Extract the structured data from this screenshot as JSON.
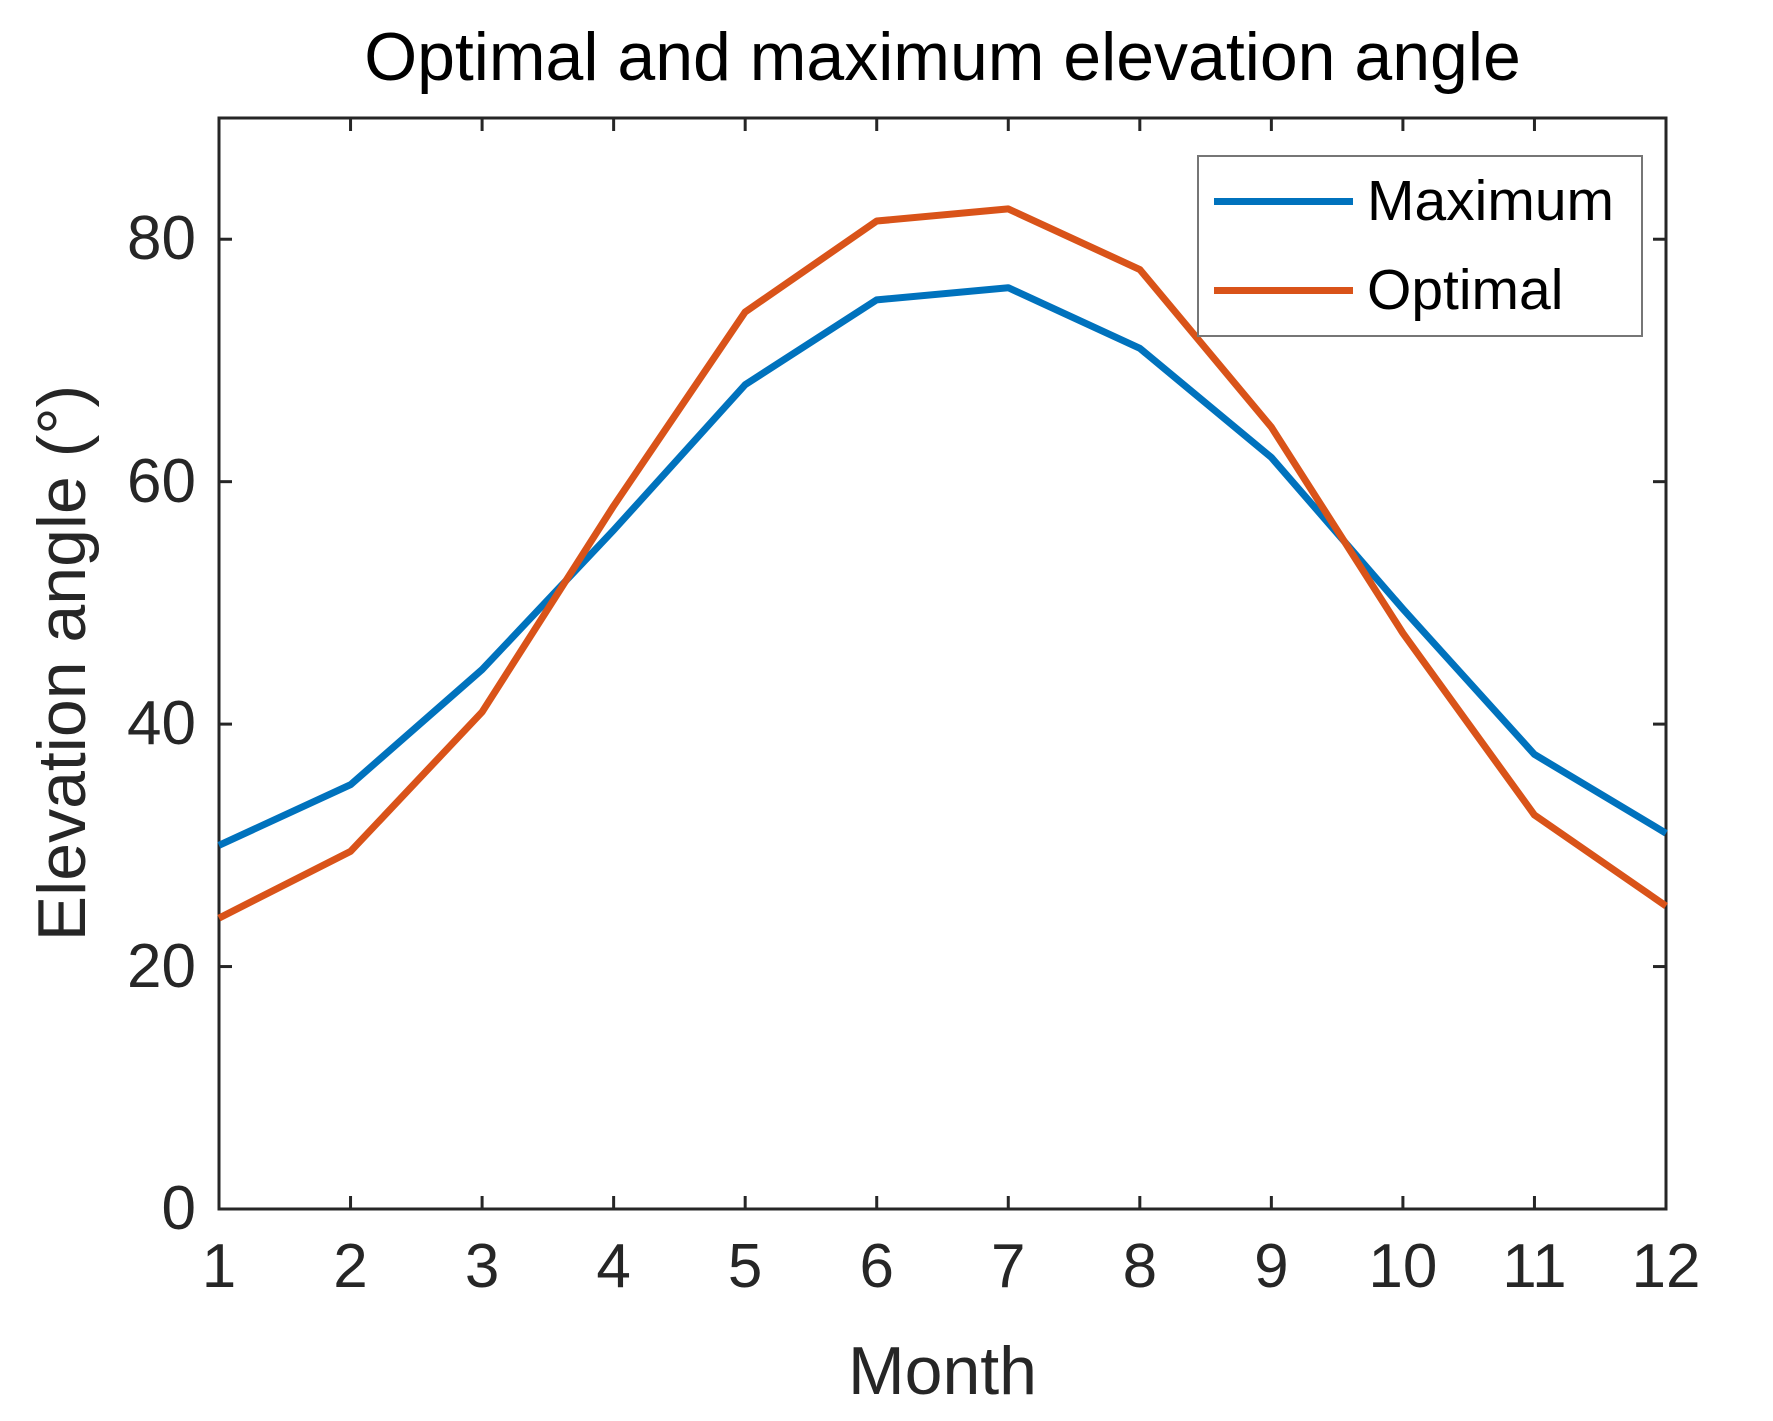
{
  "chart_data": {
    "type": "line",
    "title": "Optimal and maximum elevation angle",
    "xlabel": "Month",
    "ylabel": "Elevation angle (°)",
    "x": [
      1,
      2,
      3,
      4,
      5,
      6,
      7,
      8,
      9,
      10,
      11,
      12
    ],
    "xtick_labels": [
      "1",
      "2",
      "3",
      "4",
      "5",
      "6",
      "7",
      "8",
      "9",
      "10",
      "11",
      "12"
    ],
    "ytick_values": [
      0,
      20,
      40,
      60,
      80
    ],
    "ytick_labels": [
      "0",
      "20",
      "40",
      "60",
      "80"
    ],
    "xlim": [
      1,
      12
    ],
    "ylim": [
      0,
      90
    ],
    "grid": false,
    "legend_position": "top-right",
    "axis_color": "#262626",
    "legend_border_color": "#767676",
    "series": [
      {
        "name": "Maximum",
        "color": "#0072BD",
        "values": [
          30,
          35,
          44.5,
          56,
          68,
          75,
          76,
          71,
          62,
          49.5,
          37.5,
          31
        ]
      },
      {
        "name": "Optimal",
        "color": "#D95319",
        "values": [
          24,
          29.5,
          41,
          58,
          74,
          81.5,
          82.5,
          77.5,
          64.5,
          47.5,
          32.5,
          25
        ]
      }
    ]
  }
}
